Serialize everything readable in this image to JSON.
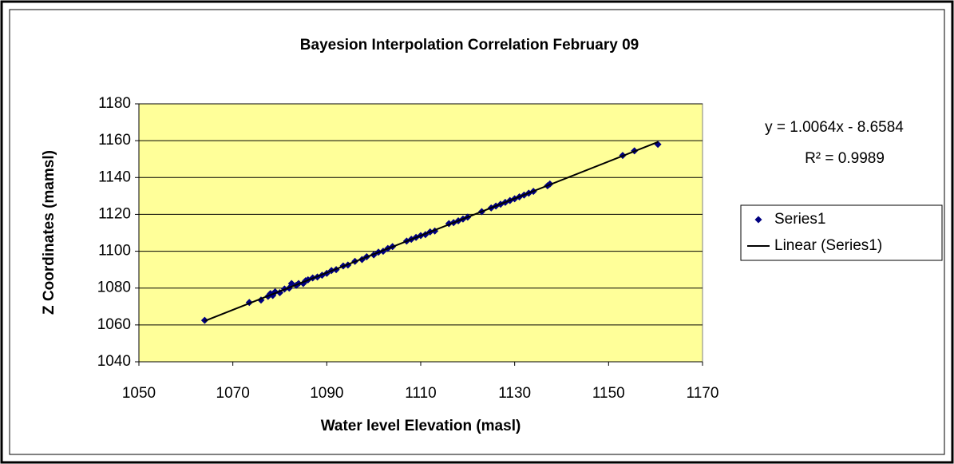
{
  "chart_data": {
    "type": "scatter",
    "title": "Bayesion Interpolation Correlation February 09",
    "xlabel": "Water level Elevation (masl)",
    "ylabel": "Z Coordinates (mamsl)",
    "xlim": [
      1050,
      1170
    ],
    "xticks": [
      1050,
      1070,
      1090,
      1110,
      1130,
      1150,
      1170
    ],
    "ylim": [
      1040,
      1180
    ],
    "yticks": [
      1040,
      1060,
      1080,
      1100,
      1120,
      1140,
      1160,
      1180
    ],
    "grid": true,
    "legend": "right",
    "annotations": [
      "y = 1.0064x - 8.6584",
      "R² = 0.9989"
    ],
    "series": [
      {
        "name": "Series1",
        "color": "#000080",
        "x": [
          1064,
          1073.5,
          1076,
          1077.5,
          1078,
          1078.5,
          1079,
          1080,
          1081,
          1082,
          1082.5,
          1083.5,
          1084,
          1085,
          1085.5,
          1086,
          1087,
          1088,
          1089,
          1090,
          1091,
          1092,
          1093.5,
          1094.5,
          1096,
          1097.5,
          1098.5,
          1100,
          1101,
          1102,
          1103,
          1104,
          1107,
          1108,
          1109,
          1110,
          1111,
          1112,
          1113,
          1116,
          1117,
          1118,
          1119,
          1120,
          1123,
          1125,
          1126,
          1127,
          1128,
          1129,
          1130,
          1131,
          1132,
          1133,
          1134,
          1137,
          1137.5,
          1153,
          1155.5,
          1160.5
        ],
        "values": [
          1062.5,
          1072.2,
          1073.5,
          1075.5,
          1077,
          1076,
          1078,
          1077.5,
          1079.5,
          1080,
          1082.5,
          1081.5,
          1082.5,
          1082.5,
          1084,
          1084.5,
          1085.5,
          1086,
          1087,
          1088,
          1089.5,
          1090,
          1092,
          1092.5,
          1094.5,
          1095.5,
          1097,
          1098,
          1099.5,
          1100,
          1101.5,
          1102.5,
          1105.5,
          1106.5,
          1107.5,
          1108.5,
          1109,
          1110.5,
          1111,
          1115,
          1115.5,
          1116.5,
          1117.5,
          1118.5,
          1121.5,
          1123.5,
          1124.5,
          1125.5,
          1126.5,
          1127.5,
          1128.5,
          1129.5,
          1130.5,
          1131.5,
          1132.5,
          1135.5,
          1136.5,
          1152,
          1154.5,
          1158
        ]
      },
      {
        "name": "Linear (Series1)",
        "color": "#000000",
        "kind": "line",
        "x": [
          1064,
          1160.5
        ],
        "values": [
          1062.15,
          1159.27
        ]
      }
    ]
  }
}
